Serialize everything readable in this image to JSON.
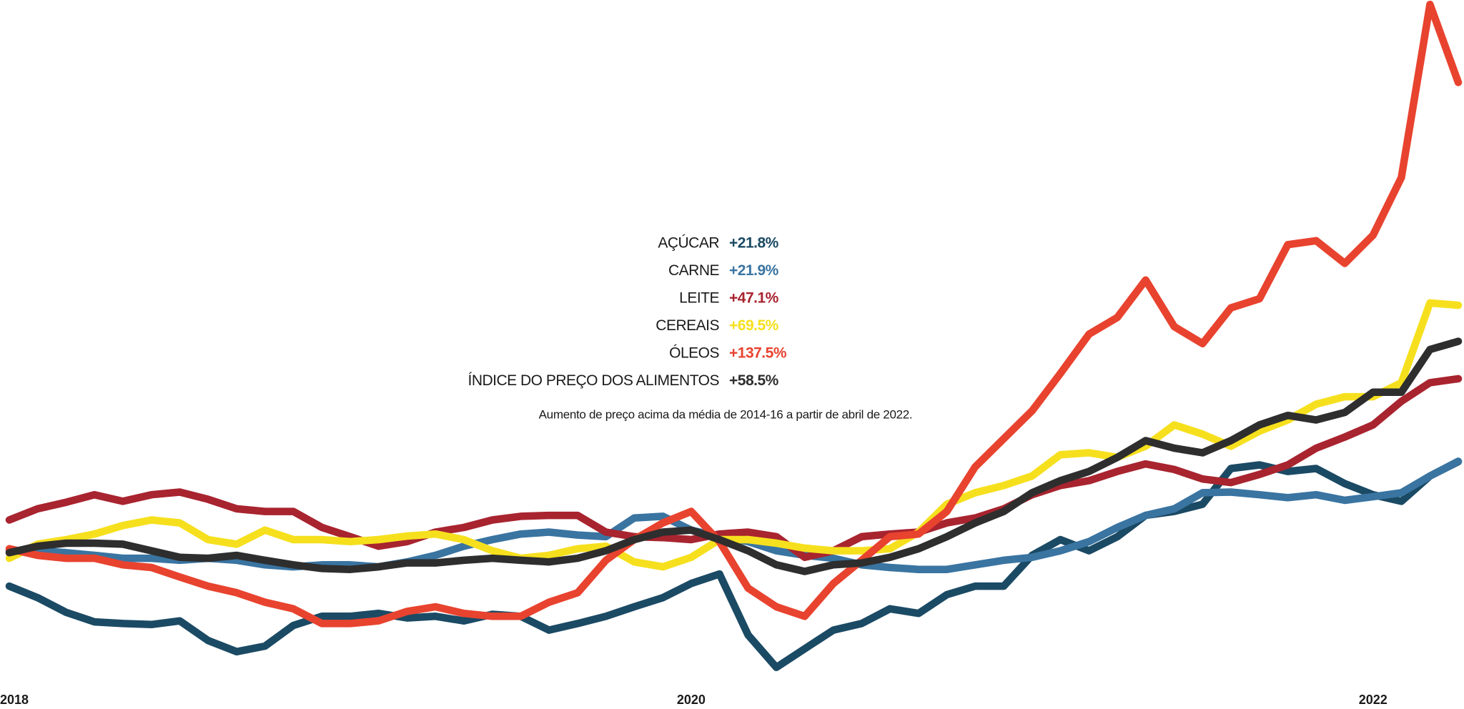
{
  "chart_data": {
    "type": "line",
    "subtitle": "Aumento de preço acima da média de 2014-16 a partir de abril de 2022.",
    "x": [
      2018,
      2018.083,
      2018.167,
      2018.25,
      2018.333,
      2018.417,
      2018.5,
      2018.583,
      2018.667,
      2018.75,
      2018.833,
      2018.917,
      2019,
      2019.083,
      2019.167,
      2019.25,
      2019.333,
      2019.417,
      2019.5,
      2019.583,
      2019.667,
      2019.75,
      2019.833,
      2019.917,
      2020,
      2020.083,
      2020.167,
      2020.25,
      2020.333,
      2020.417,
      2020.5,
      2020.583,
      2020.667,
      2020.75,
      2020.833,
      2020.917,
      2021,
      2021.083,
      2021.167,
      2021.25,
      2021.333,
      2021.417,
      2021.5,
      2021.583,
      2021.667,
      2021.75,
      2021.833,
      2021.917,
      2022,
      2022.083,
      2022.167,
      2022.25
    ],
    "xlim": [
      2018,
      2022.25
    ],
    "xticks": [
      2018,
      2020,
      2022
    ],
    "ylim": [
      57,
      262
    ],
    "grid": false,
    "series": [
      {
        "name": "AÇÚCAR",
        "change": "+21.8%",
        "color": "#1b4a64",
        "values": [
          83.8,
          80.3,
          75.8,
          72.9,
          72.4,
          72.1,
          73.2,
          67.2,
          63.8,
          65.5,
          71.8,
          74.6,
          74.6,
          75.5,
          74.1,
          74.6,
          73.2,
          75.2,
          74.6,
          70.4,
          72.4,
          74.6,
          77.5,
          80.3,
          84.6,
          87.5,
          68.9,
          59.0,
          64.7,
          70.4,
          72.4,
          76.9,
          75.5,
          81.2,
          83.8,
          83.8,
          93.2,
          98.0,
          94.6,
          98.9,
          105.4,
          106.6,
          108.8,
          119.7,
          120.8,
          118.8,
          119.7,
          115.1,
          111.7,
          109.7,
          117.4,
          121.8
        ]
      },
      {
        "name": "CARNE",
        "change": "+21.9%",
        "color": "#3a74a1",
        "values": [
          94.6,
          94.6,
          94.0,
          93.2,
          92.3,
          92.3,
          91.7,
          92.3,
          91.7,
          90.3,
          89.7,
          90.3,
          90.3,
          89.7,
          91.2,
          93.2,
          96.0,
          98.0,
          99.7,
          100.3,
          99.4,
          98.9,
          104.6,
          105.1,
          100.9,
          98.9,
          97.4,
          94.6,
          93.2,
          92.3,
          90.3,
          89.5,
          88.9,
          88.9,
          90.3,
          91.7,
          92.6,
          94.6,
          97.4,
          101.7,
          105.4,
          107.4,
          112.3,
          112.5,
          111.7,
          110.8,
          111.7,
          110.0,
          111.1,
          112.3,
          117.4,
          121.9
        ]
      },
      {
        "name": "LEITE",
        "change": "+47.1%",
        "color": "#a8242f",
        "values": [
          104.0,
          107.4,
          109.4,
          111.7,
          109.7,
          111.7,
          112.5,
          110.3,
          107.4,
          106.6,
          106.6,
          101.7,
          98.9,
          96.0,
          97.4,
          100.3,
          101.7,
          104.0,
          105.1,
          105.4,
          105.4,
          100.3,
          98.9,
          98.6,
          98.0,
          99.7,
          100.3,
          98.9,
          92.6,
          94.6,
          98.9,
          99.7,
          100.3,
          103.1,
          104.6,
          107.4,
          111.7,
          114.5,
          116.0,
          118.8,
          121.1,
          119.4,
          116.5,
          115.4,
          117.9,
          120.8,
          125.9,
          129.3,
          133.0,
          140.2,
          145.9,
          147.1
        ]
      },
      {
        "name": "CEREAIS",
        "change": "+69.5%",
        "color": "#f6e01e",
        "values": [
          92.3,
          96.6,
          98.0,
          99.7,
          102.3,
          104.0,
          103.1,
          98.0,
          96.6,
          100.9,
          98.0,
          98.0,
          97.4,
          98.0,
          99.1,
          99.7,
          98.0,
          94.6,
          92.3,
          93.2,
          95.2,
          96.0,
          91.2,
          89.7,
          92.6,
          98.0,
          98.0,
          96.9,
          95.4,
          94.6,
          94.6,
          95.2,
          100.3,
          108.8,
          112.3,
          114.5,
          117.4,
          123.9,
          124.5,
          123.1,
          126.5,
          133.0,
          130.2,
          126.5,
          131.1,
          134.5,
          139.3,
          141.6,
          141.6,
          145.9,
          170.2,
          169.5
        ]
      },
      {
        "name": "ÓLEOS",
        "change": "+137.5%",
        "color": "#e8432f",
        "values": [
          95.2,
          93.2,
          92.3,
          92.3,
          90.3,
          89.5,
          86.6,
          83.8,
          81.8,
          78.9,
          76.9,
          72.4,
          72.4,
          73.2,
          76.1,
          77.5,
          75.5,
          74.6,
          74.6,
          78.9,
          81.8,
          91.7,
          98.0,
          103.1,
          106.6,
          97.4,
          83.2,
          77.5,
          74.6,
          84.6,
          91.7,
          98.9,
          99.7,
          106.6,
          120.2,
          128.8,
          137.3,
          148.7,
          160.7,
          165.8,
          177.2,
          163.0,
          157.8,
          168.7,
          171.5,
          188.0,
          189.2,
          182.3,
          190.9,
          208.5,
          261.3,
          237.5
        ]
      },
      {
        "name": "ÍNDICE DO PREÇO DOS ALIMENTOS",
        "change": "+58.5%",
        "color": "#2e2e2e",
        "values": [
          94.0,
          96.0,
          96.9,
          96.9,
          96.6,
          94.6,
          92.6,
          92.3,
          93.2,
          91.7,
          90.3,
          89.2,
          88.9,
          89.7,
          90.9,
          90.9,
          91.7,
          92.3,
          91.7,
          91.2,
          92.3,
          94.6,
          98.0,
          100.3,
          100.9,
          98.0,
          94.6,
          90.3,
          88.3,
          90.3,
          90.9,
          92.6,
          95.2,
          98.9,
          103.1,
          106.6,
          112.3,
          116.0,
          118.8,
          123.1,
          128.2,
          125.9,
          124.5,
          128.2,
          133.0,
          135.9,
          134.5,
          136.8,
          143.0,
          143.0,
          156.0,
          158.5
        ]
      }
    ]
  }
}
